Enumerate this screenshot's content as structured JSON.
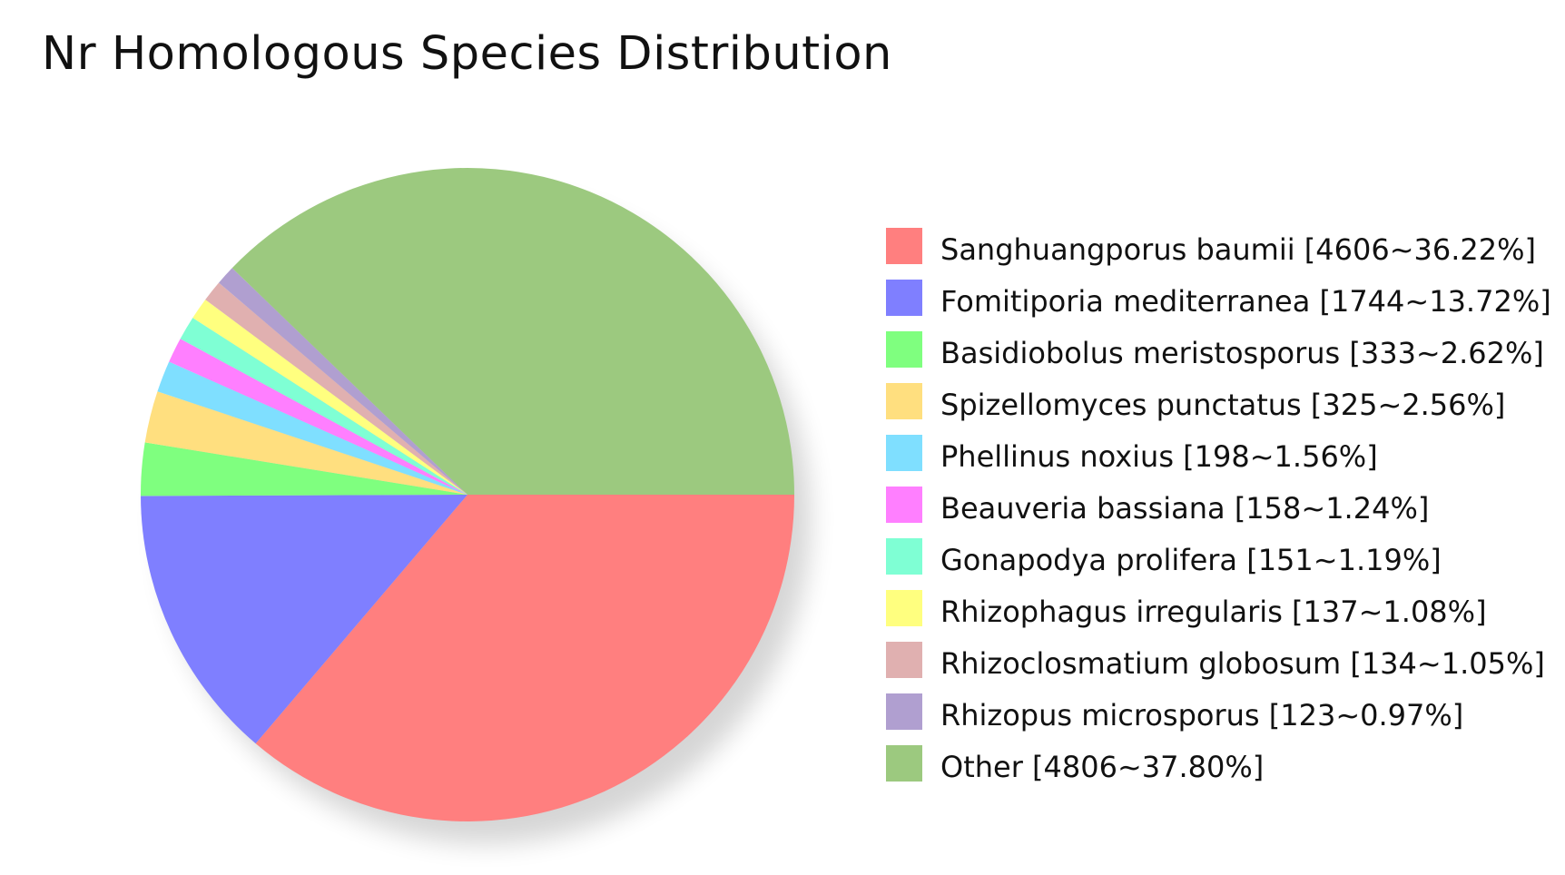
{
  "chart_data": {
    "type": "pie",
    "title": "Nr Homologous Species Distribution",
    "legend_position": "right",
    "start_angle_deg": 0,
    "direction": "clockwise",
    "slices": [
      {
        "label": "Sanghuangporus baumii [4606~36.22%]",
        "name": "Sanghuangporus baumii",
        "value": 4606,
        "percent": 36.22,
        "color": "#ff7f7f"
      },
      {
        "label": "Fomitiporia mediterranea [1744~13.72%]",
        "name": "Fomitiporia mediterranea",
        "value": 1744,
        "percent": 13.72,
        "color": "#7f7fff"
      },
      {
        "label": "Basidiobolus meristosporus [333~2.62%]",
        "name": "Basidiobolus meristosporus",
        "value": 333,
        "percent": 2.62,
        "color": "#7fff7f"
      },
      {
        "label": "Spizellomyces punctatus [325~2.56%]",
        "name": "Spizellomyces punctatus",
        "value": 325,
        "percent": 2.56,
        "color": "#ffdf7f"
      },
      {
        "label": "Phellinus noxius [198~1.56%]",
        "name": "Phellinus noxius",
        "value": 198,
        "percent": 1.56,
        "color": "#7fdfff"
      },
      {
        "label": "Beauveria bassiana [158~1.24%]",
        "name": "Beauveria bassiana",
        "value": 158,
        "percent": 1.24,
        "color": "#ff7fff"
      },
      {
        "label": "Gonapodya prolifera [151~1.19%]",
        "name": "Gonapodya prolifera",
        "value": 151,
        "percent": 1.19,
        "color": "#7fffd4"
      },
      {
        "label": "Rhizophagus irregularis [137~1.08%]",
        "name": "Rhizophagus irregularis",
        "value": 137,
        "percent": 1.08,
        "color": "#ffff7f"
      },
      {
        "label": "Rhizoclosmatium globosum [134~1.05%]",
        "name": "Rhizoclosmatium globosum",
        "value": 134,
        "percent": 1.05,
        "color": "#e0b0b0"
      },
      {
        "label": "Rhizopus microsporus [123~0.97%]",
        "name": "Rhizopus microsporus",
        "value": 123,
        "percent": 0.97,
        "color": "#b09fd0"
      },
      {
        "label": "Other [4806~37.80%]",
        "name": "Other",
        "value": 4806,
        "percent": 37.8,
        "color": "#9cc97f"
      }
    ]
  }
}
